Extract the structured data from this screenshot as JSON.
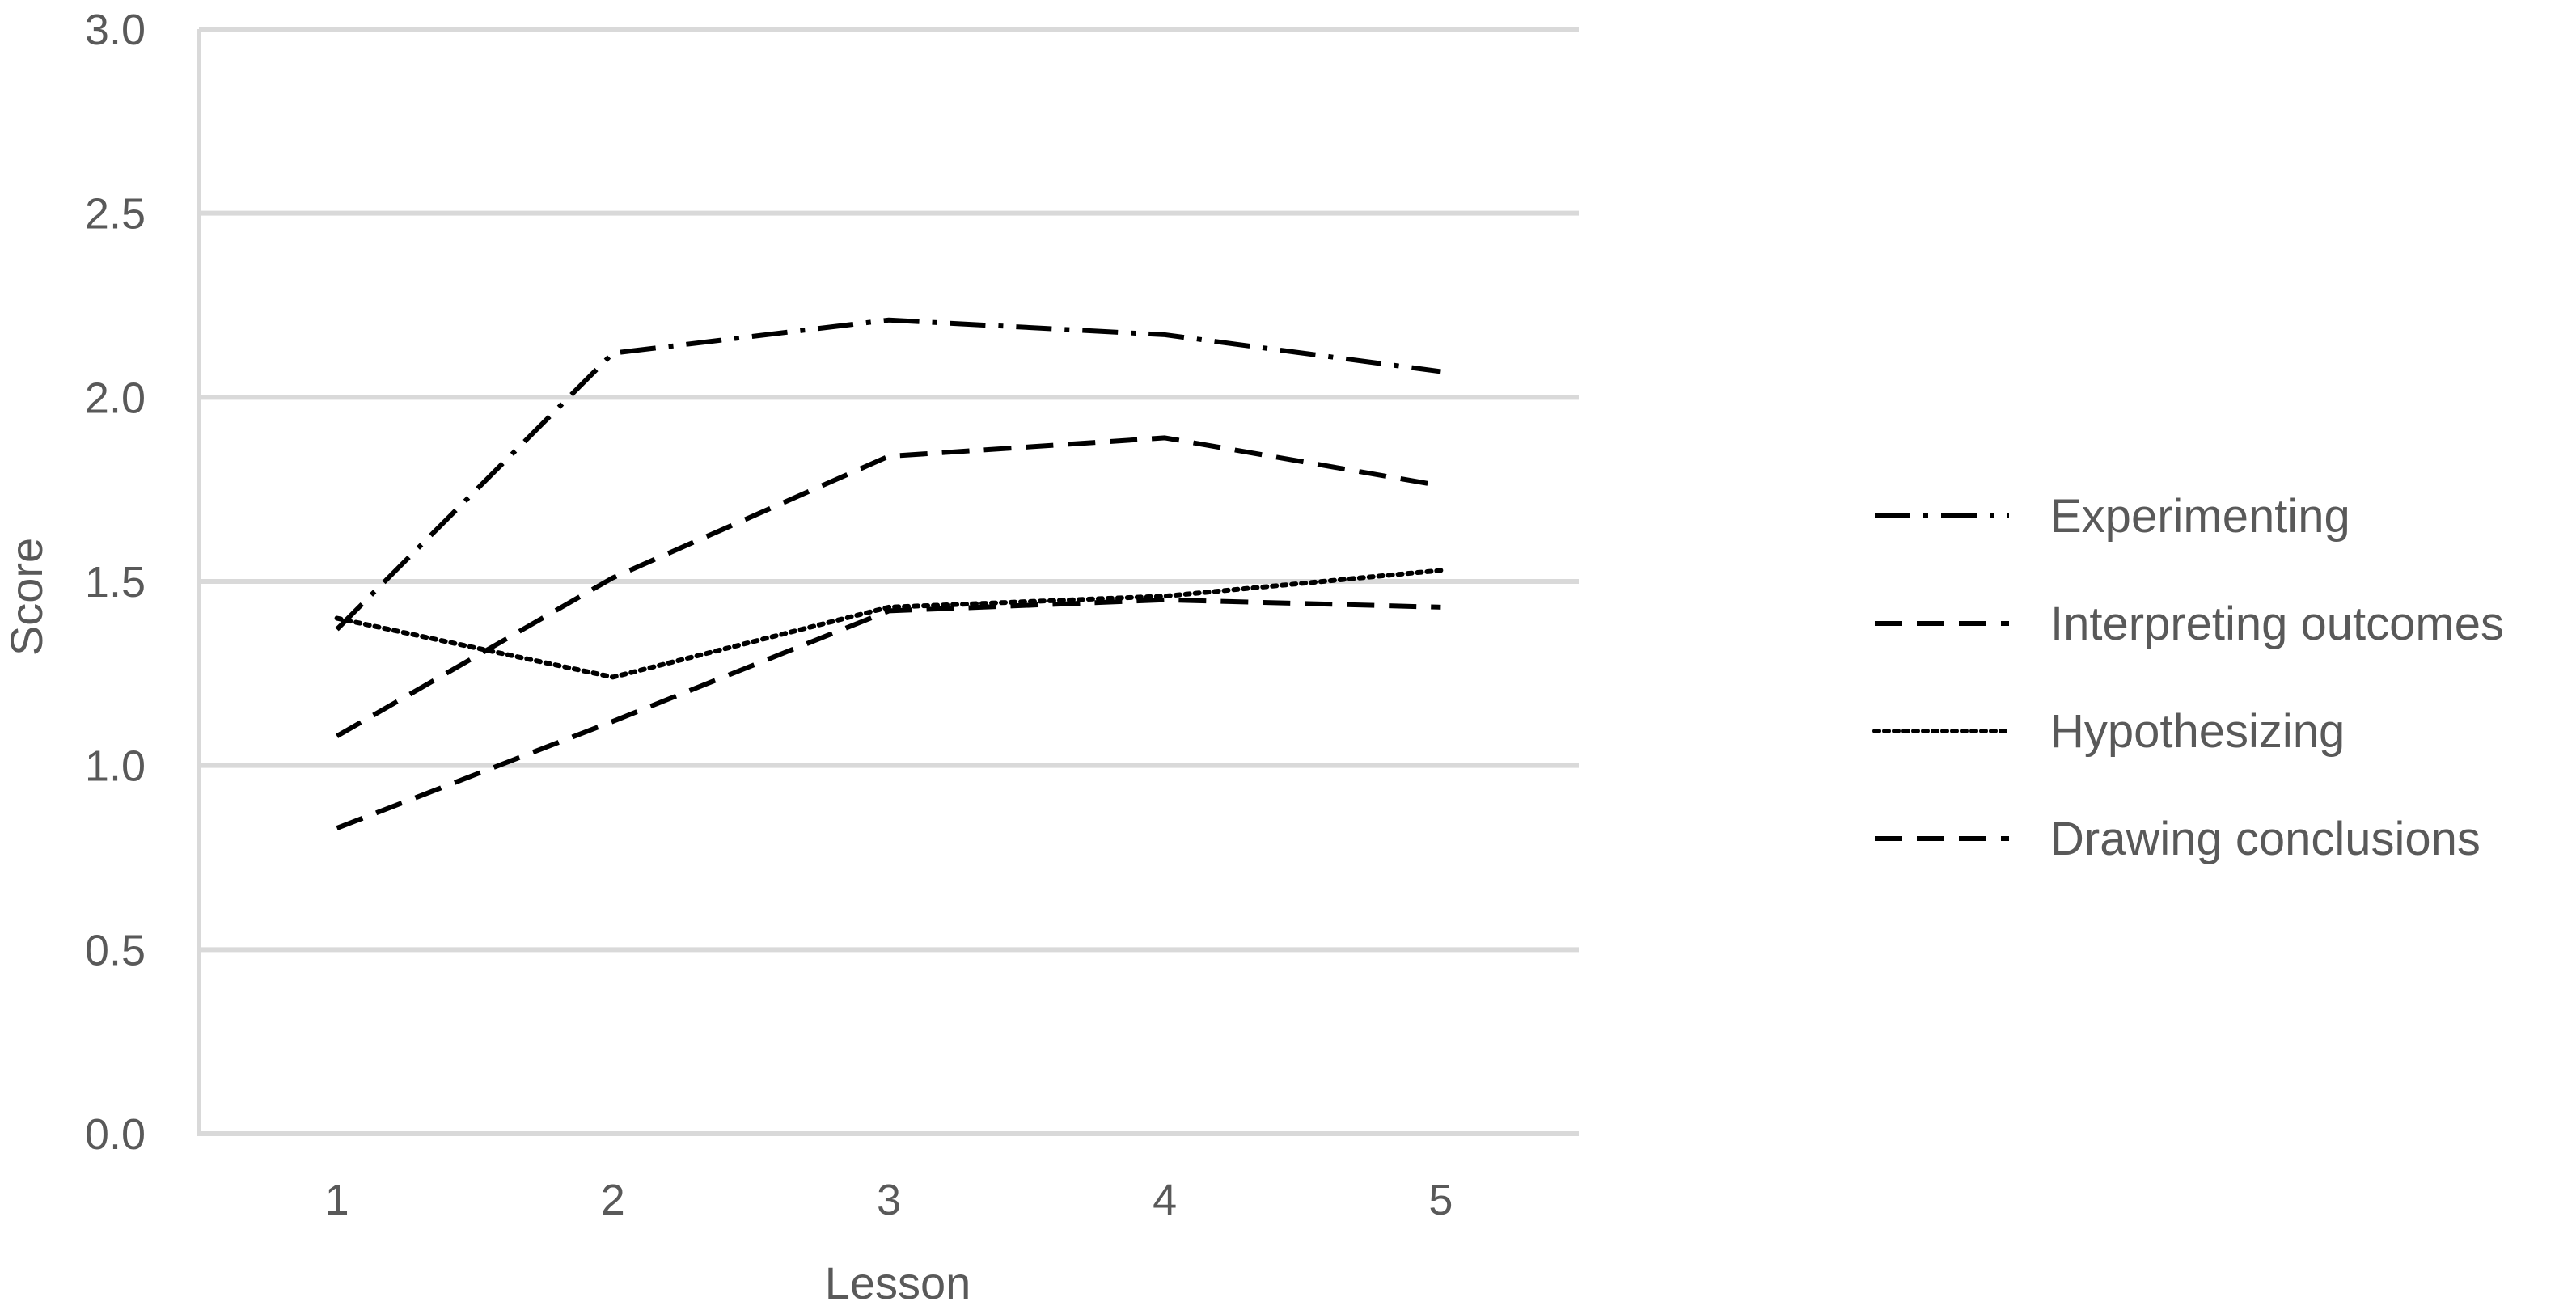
{
  "chart_data": {
    "type": "line",
    "title": "",
    "xlabel": "Lesson",
    "ylabel": "Score",
    "categories": [
      "1",
      "2",
      "3",
      "4",
      "5"
    ],
    "ylim": [
      0,
      3
    ],
    "yticks": [
      "0.0",
      "0.5",
      "1.0",
      "1.5",
      "2.0",
      "2.5",
      "3.0"
    ],
    "grid": true,
    "legend_position": "right",
    "series": [
      {
        "name": "Experimenting",
        "values": [
          1.37,
          2.12,
          2.21,
          2.17,
          2.07
        ],
        "style": "dash-dot",
        "color": "#000000"
      },
      {
        "name": "Interpreting outcomes",
        "values": [
          1.08,
          1.51,
          1.84,
          1.89,
          1.76
        ],
        "style": "dashed",
        "color": "#000000"
      },
      {
        "name": "Hypothesizing",
        "values": [
          1.4,
          1.24,
          1.43,
          1.46,
          1.53
        ],
        "style": "dotted",
        "color": "#000000"
      },
      {
        "name": "Drawing conclusions",
        "values": [
          0.83,
          1.12,
          1.42,
          1.45,
          1.43
        ],
        "style": "dashed",
        "color": "#000000"
      }
    ]
  }
}
